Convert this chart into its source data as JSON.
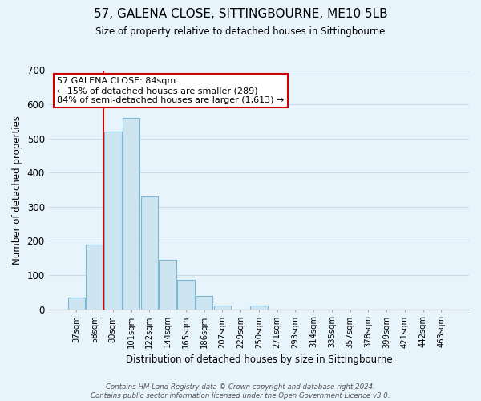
{
  "title": "57, GALENA CLOSE, SITTINGBOURNE, ME10 5LB",
  "subtitle": "Size of property relative to detached houses in Sittingbourne",
  "xlabel": "Distribution of detached houses by size in Sittingbourne",
  "ylabel": "Number of detached properties",
  "bar_labels": [
    "37sqm",
    "58sqm",
    "80sqm",
    "101sqm",
    "122sqm",
    "144sqm",
    "165sqm",
    "186sqm",
    "207sqm",
    "229sqm",
    "250sqm",
    "271sqm",
    "293sqm",
    "314sqm",
    "335sqm",
    "357sqm",
    "378sqm",
    "399sqm",
    "421sqm",
    "442sqm",
    "463sqm"
  ],
  "bar_values": [
    35,
    190,
    520,
    560,
    330,
    145,
    85,
    40,
    12,
    0,
    12,
    0,
    0,
    0,
    0,
    0,
    0,
    0,
    0,
    0,
    0
  ],
  "bar_color": "#cce5f0",
  "bar_edge_color": "#7ab8d4",
  "vline_x": 1.5,
  "vline_color": "#cc0000",
  "ylim": [
    0,
    700
  ],
  "yticks": [
    0,
    100,
    200,
    300,
    400,
    500,
    600,
    700
  ],
  "annotation_title": "57 GALENA CLOSE: 84sqm",
  "annotation_line1": "← 15% of detached houses are smaller (289)",
  "annotation_line2": "84% of semi-detached houses are larger (1,613) →",
  "annotation_box_color": "#ffffff",
  "annotation_box_edge": "#cc0000",
  "footer_line1": "Contains HM Land Registry data © Crown copyright and database right 2024.",
  "footer_line2": "Contains public sector information licensed under the Open Government Licence v3.0.",
  "bg_color": "#e8f4fb",
  "grid_color": "#c8dce8"
}
